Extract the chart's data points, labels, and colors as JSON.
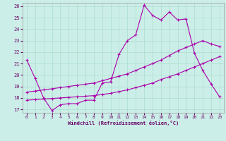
{
  "xlabel": "Windchill (Refroidissement éolien,°C)",
  "xlim": [
    -0.5,
    23.5
  ],
  "ylim": [
    16.7,
    26.3
  ],
  "xticks": [
    0,
    1,
    2,
    3,
    4,
    5,
    6,
    7,
    8,
    9,
    10,
    11,
    12,
    13,
    14,
    15,
    16,
    17,
    18,
    19,
    20,
    21,
    22,
    23
  ],
  "yticks": [
    17,
    18,
    19,
    20,
    21,
    22,
    23,
    24,
    25,
    26
  ],
  "background_color": "#cceee8",
  "grid_color": "#aaddcc",
  "line_color": "#aa00aa",
  "line1_x": [
    0,
    1,
    2,
    3,
    4,
    5,
    6,
    7,
    8,
    9,
    10,
    11,
    12,
    13,
    14,
    15,
    16,
    17,
    18,
    19,
    20,
    21,
    22,
    23
  ],
  "line1_y": [
    21.3,
    19.7,
    18.0,
    16.9,
    17.4,
    17.5,
    17.5,
    17.8,
    17.8,
    19.3,
    19.4,
    21.8,
    23.0,
    23.5,
    26.1,
    25.2,
    24.8,
    25.5,
    24.8,
    24.9,
    21.9,
    20.4,
    19.2,
    18.1
  ],
  "line2_x": [
    0,
    1,
    2,
    3,
    4,
    5,
    6,
    7,
    8,
    9,
    10,
    11,
    12,
    13,
    14,
    15,
    16,
    17,
    18,
    19,
    20,
    21,
    22,
    23
  ],
  "line2_y": [
    17.8,
    17.85,
    17.9,
    17.95,
    18.0,
    18.05,
    18.1,
    18.15,
    18.2,
    18.3,
    18.4,
    18.55,
    18.7,
    18.9,
    19.1,
    19.3,
    19.6,
    19.85,
    20.1,
    20.4,
    20.7,
    21.0,
    21.3,
    21.6
  ],
  "line3_x": [
    0,
    1,
    2,
    3,
    4,
    5,
    6,
    7,
    8,
    9,
    10,
    11,
    12,
    13,
    14,
    15,
    16,
    17,
    18,
    19,
    20,
    21,
    22,
    23
  ],
  "line3_y": [
    18.5,
    18.6,
    18.7,
    18.8,
    18.9,
    19.0,
    19.1,
    19.2,
    19.3,
    19.5,
    19.7,
    19.9,
    20.1,
    20.4,
    20.7,
    21.0,
    21.3,
    21.7,
    22.1,
    22.4,
    22.7,
    23.0,
    22.7,
    22.5
  ]
}
